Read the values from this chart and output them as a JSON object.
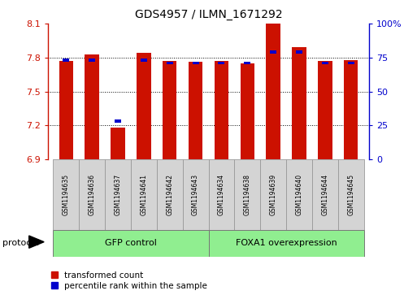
{
  "title": "GDS4957 / ILMN_1671292",
  "samples": [
    "GSM1194635",
    "GSM1194636",
    "GSM1194637",
    "GSM1194641",
    "GSM1194642",
    "GSM1194643",
    "GSM1194634",
    "GSM1194638",
    "GSM1194639",
    "GSM1194640",
    "GSM1194644",
    "GSM1194645"
  ],
  "red_values": [
    7.77,
    7.83,
    7.18,
    7.84,
    7.77,
    7.76,
    7.77,
    7.75,
    8.1,
    7.89,
    7.77,
    7.78
  ],
  "blue_values": [
    72,
    72,
    27,
    72,
    70,
    70,
    70,
    70,
    78,
    78,
    70,
    70
  ],
  "ylim_left": [
    6.9,
    8.1
  ],
  "ylim_right": [
    0,
    100
  ],
  "yticks_left": [
    6.9,
    7.2,
    7.5,
    7.8,
    8.1
  ],
  "yticks_right": [
    0,
    25,
    50,
    75,
    100
  ],
  "bar_color": "#cc1100",
  "blue_color": "#0000cc",
  "group1_label": "GFP control",
  "group2_label": "FOXA1 overexpression",
  "group1_indices": [
    0,
    1,
    2,
    3,
    4,
    5
  ],
  "group2_indices": [
    6,
    7,
    8,
    9,
    10,
    11
  ],
  "group_color": "#90ee90",
  "tick_box_color": "#d4d4d4",
  "protocol_label": "protocol",
  "legend_red_label": "transformed count",
  "legend_blue_label": "percentile rank within the sample",
  "bar_width": 0.55,
  "blue_bar_width": 0.25,
  "blue_bar_height": 0.025
}
